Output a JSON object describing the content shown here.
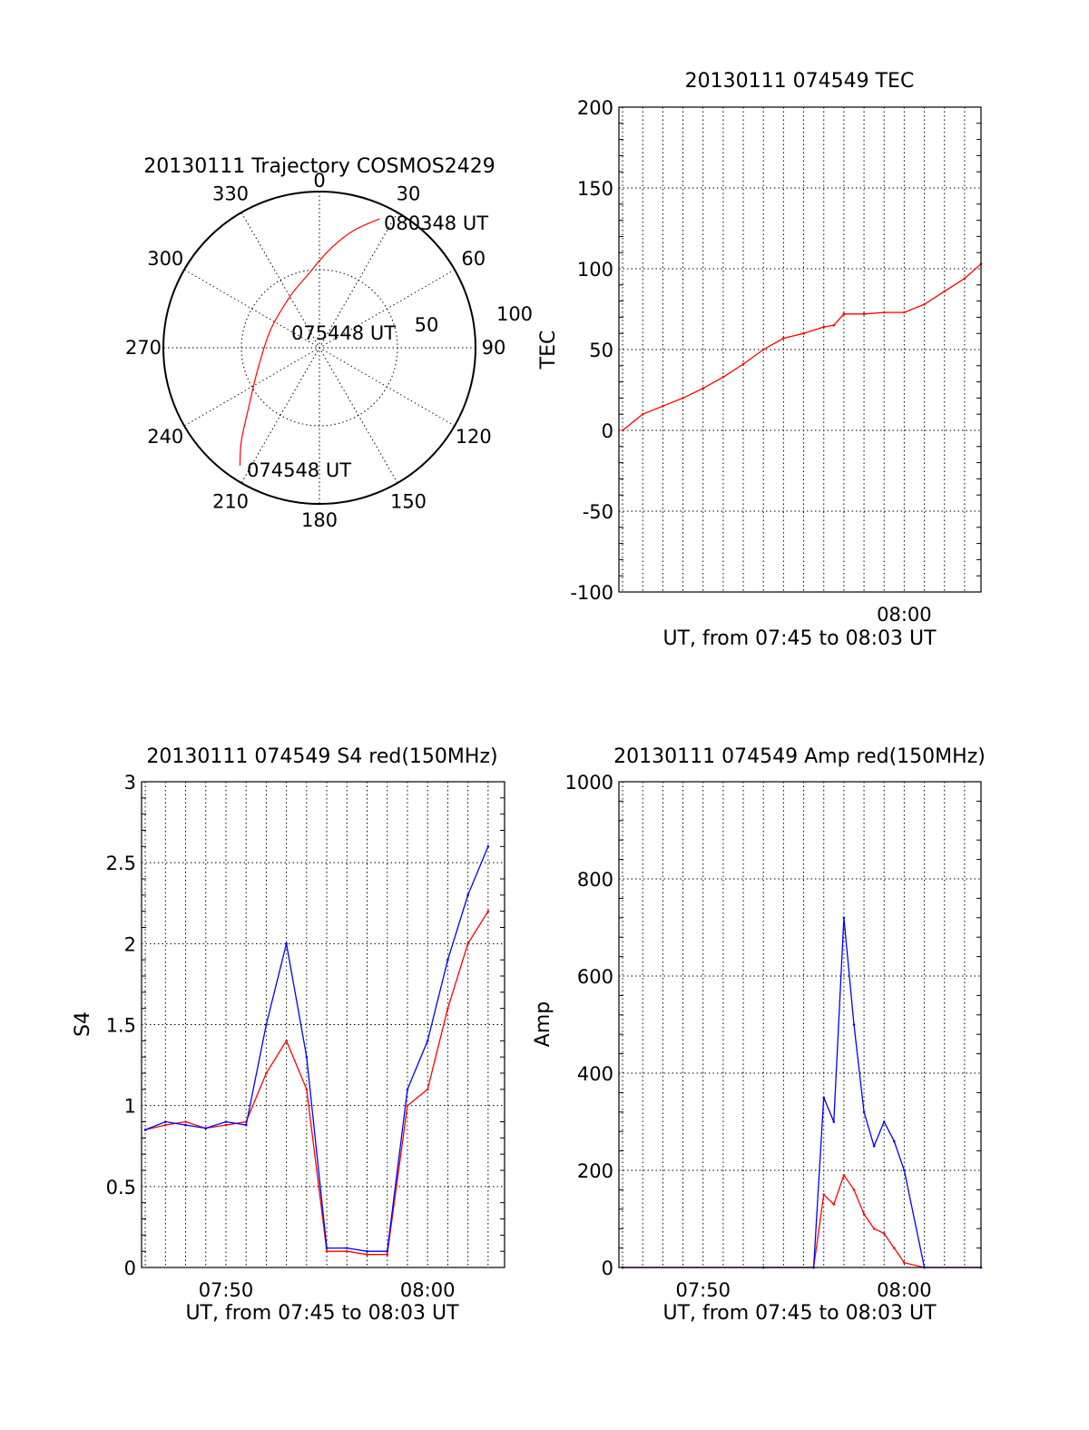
{
  "chart_data": [
    {
      "type": "polar",
      "title": "20130111 Trajectory COSMOS2429",
      "angle_labels": [
        "0",
        "30",
        "60",
        "90",
        "120",
        "150",
        "180",
        "210",
        "240",
        "270",
        "300",
        "330"
      ],
      "radial_labels": [
        "50",
        "100"
      ],
      "grid": true,
      "trajectory": {
        "color": "#ff0000",
        "points": [
          {
            "azimuth": 214,
            "elevation": 8
          },
          {
            "azimuth": 220,
            "elevation": 20
          },
          {
            "azimuth": 231,
            "elevation": 38
          },
          {
            "azimuth": 250,
            "elevation": 52
          },
          {
            "azimuth": 290,
            "elevation": 60
          },
          {
            "azimuth": 330,
            "elevation": 56
          },
          {
            "azimuth": 350,
            "elevation": 48
          },
          {
            "azimuth": 6,
            "elevation": 33
          },
          {
            "azimuth": 16,
            "elevation": 20
          },
          {
            "azimuth": 25,
            "elevation": 8
          }
        ]
      },
      "annotations": [
        "080348 UT",
        "075448 UT",
        "074548 UT"
      ]
    },
    {
      "type": "line",
      "title": "20130111 074549 TEC",
      "xlabel": "UT, from 07:45 to 08:03 UT",
      "ylabel": "TEC",
      "xlim": [
        "07:45:49",
        "08:03:49"
      ],
      "ylim": [
        -100,
        200
      ],
      "yticks": [
        "200",
        "150",
        "100",
        "50",
        "0",
        "-50",
        "-100"
      ],
      "xticks": [
        {
          "label": "08:00",
          "x": "08:00"
        }
      ],
      "grid": true,
      "series": [
        {
          "color": "#ff0000",
          "x": [
            "07:46",
            "07:47",
            "07:48",
            "07:49",
            "07:50",
            "07:51",
            "07:52",
            "07:53",
            "07:54",
            "07:55",
            "07:56",
            "07:56:30",
            "07:57",
            "07:58",
            "07:59",
            "08:00",
            "08:01",
            "08:02",
            "08:03",
            "08:03:49"
          ],
          "values": [
            0,
            10,
            15,
            20,
            26,
            33,
            41,
            50,
            57,
            60,
            64,
            65,
            72,
            72,
            73,
            73,
            78,
            86,
            94,
            103
          ]
        }
      ]
    },
    {
      "type": "line",
      "title": "20130111 074549 S4 red(150MHz)",
      "xlabel": "UT, from 07:45 to 08:03 UT",
      "ylabel": "S4",
      "xlim": [
        "07:45:49",
        "08:03:49"
      ],
      "ylim": [
        0,
        3
      ],
      "yticks": [
        "3",
        "2.5",
        "2",
        "1.5",
        "1",
        "0.5",
        "0"
      ],
      "xticks": [
        {
          "label": "07:50",
          "x": "07:50"
        },
        {
          "label": "08:00",
          "x": "08:00"
        }
      ],
      "grid": true,
      "series": [
        {
          "color": "#ff0000",
          "x": [
            "07:46:00",
            "07:47:00",
            "07:48:00",
            "07:49:00",
            "07:50:00",
            "07:51:00",
            "07:52:00",
            "07:53:00",
            "07:54:00",
            "07:55:00",
            "07:56:00",
            "07:57:00",
            "07:58:00",
            "07:59:00",
            "08:00:00",
            "08:01:00",
            "08:02:00",
            "08:03:00"
          ],
          "values": [
            0.85,
            0.88,
            0.9,
            0.86,
            0.88,
            0.9,
            1.2,
            1.4,
            1.1,
            0.1,
            0.1,
            0.08,
            0.08,
            1.0,
            1.1,
            1.6,
            2.0,
            2.2
          ]
        },
        {
          "color": "#0000ff",
          "x": [
            "07:46:00",
            "07:47:00",
            "07:48:00",
            "07:49:00",
            "07:50:00",
            "07:51:00",
            "07:52:00",
            "07:53:00",
            "07:54:00",
            "07:55:00",
            "07:56:00",
            "07:57:00",
            "07:58:00",
            "07:59:00",
            "08:00:00",
            "08:01:00",
            "08:02:00",
            "08:03:00"
          ],
          "values": [
            0.85,
            0.9,
            0.88,
            0.86,
            0.9,
            0.88,
            1.5,
            2.0,
            1.3,
            0.12,
            0.12,
            0.1,
            0.1,
            1.1,
            1.4,
            1.9,
            2.3,
            2.6
          ]
        }
      ]
    },
    {
      "type": "line",
      "title": "20130111 074549 Amp red(150MHz)",
      "xlabel": "UT, from 07:45 to 08:03 UT",
      "ylabel": "Amp",
      "xlim": [
        "07:45:49",
        "08:03:49"
      ],
      "ylim": [
        0,
        1000
      ],
      "yticks": [
        "1000",
        "800",
        "600",
        "400",
        "200",
        "0"
      ],
      "xticks": [
        {
          "label": "07:50",
          "x": "07:50"
        },
        {
          "label": "08:00",
          "x": "08:00"
        }
      ],
      "grid": true,
      "series": [
        {
          "color": "#ff0000",
          "x": [
            "07:46",
            "07:53",
            "07:55:30",
            "07:56",
            "07:56:30",
            "07:57",
            "07:57:30",
            "07:58",
            "07:58:30",
            "07:59",
            "07:59:30",
            "08:00",
            "08:01",
            "08:03:49"
          ],
          "values": [
            0,
            0,
            0,
            150,
            130,
            190,
            160,
            110,
            80,
            70,
            40,
            10,
            0,
            0
          ]
        },
        {
          "color": "#0000ff",
          "x": [
            "07:46",
            "07:53",
            "07:55:30",
            "07:56",
            "07:56:30",
            "07:57",
            "07:57:30",
            "07:58",
            "07:58:30",
            "07:59",
            "07:59:30",
            "08:00",
            "08:01",
            "08:03:49"
          ],
          "values": [
            0,
            0,
            0,
            350,
            300,
            720,
            500,
            320,
            250,
            300,
            260,
            200,
            0,
            0
          ]
        }
      ]
    }
  ]
}
